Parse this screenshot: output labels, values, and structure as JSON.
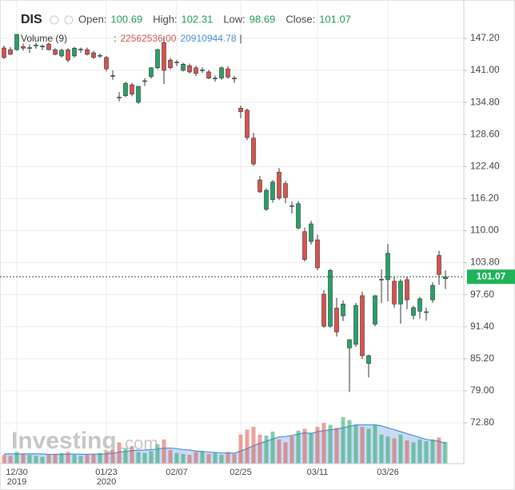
{
  "chart_data": {
    "type": "candlestick",
    "title": "DIS",
    "header": [
      {
        "label": "Open:",
        "value": 100.69
      },
      {
        "label": "High:",
        "value": 102.31
      },
      {
        "label": "Low:",
        "value": 98.69
      },
      {
        "label": "Close:",
        "value": 101.07
      }
    ],
    "categories": [
      null,
      null,
      "12/30",
      null,
      null,
      null,
      null,
      null,
      null,
      null,
      null,
      null,
      null,
      null,
      null,
      null,
      "01/23",
      null,
      null,
      null,
      null,
      null,
      null,
      null,
      null,
      null,
      null,
      "02/07",
      null,
      null,
      null,
      null,
      null,
      null,
      null,
      null,
      null,
      "02/25",
      null,
      null,
      null,
      null,
      null,
      null,
      null,
      null,
      null,
      null,
      null,
      "03/11",
      null,
      null,
      null,
      null,
      null,
      null,
      null,
      null,
      null,
      null,
      "03/26",
      null,
      null,
      null,
      null,
      null,
      null,
      null,
      null,
      null
    ],
    "x_sublabels": {
      "2": "2019",
      "16": "2020"
    },
    "open": [
      145.34,
      145.0,
      145.0,
      145.6,
      145.3,
      145.8,
      145.6,
      146.1,
      145.0,
      143.8,
      145.0,
      143.8,
      145.0,
      145.0,
      144.4,
      143.8,
      143.5,
      140.0,
      135.8,
      136.1,
      138.2,
      134.83,
      138.9,
      139.8,
      141.5,
      146.4,
      143.0,
      142.5,
      141.0,
      141.9,
      141.5,
      141.0,
      140.7,
      139.4,
      139.5,
      141.3,
      139.5,
      133.7,
      133.3,
      127.9,
      119.8,
      114.1,
      116.0,
      121.3,
      119.1,
      114.8,
      110.5,
      109.8,
      107.9,
      108.2,
      97.7,
      91.5,
      95.0,
      93.5,
      87.3,
      88.0,
      97.4,
      84.3,
      91.9,
      100.5,
      100.5,
      100.2,
      95.8,
      100.5,
      93.6,
      94.4,
      94.2,
      96.6,
      105.2,
      100.69
    ],
    "high": [
      145.8,
      145.5,
      148.0,
      146.2,
      146.0,
      146.3,
      146.0,
      146.4,
      145.3,
      145.2,
      145.3,
      145.6,
      145.4,
      145.4,
      144.8,
      144.3,
      143.8,
      141.0,
      136.8,
      138.8,
      138.6,
      137.9,
      139.5,
      141.6,
      145.2,
      147.6,
      143.4,
      143.0,
      142.5,
      142.3,
      141.9,
      141.6,
      141.1,
      140.0,
      141.8,
      141.8,
      139.9,
      134.2,
      133.6,
      128.9,
      120.6,
      118.2,
      119.8,
      122.1,
      119.6,
      115.6,
      115.7,
      110.6,
      111.9,
      109.2,
      98.5,
      102.6,
      97.0,
      96.5,
      88.9,
      96.0,
      98.2,
      86.0,
      97.5,
      102.5,
      107.4,
      101.0,
      100.6,
      101.0,
      95.5,
      97.2,
      95.1,
      100.0,
      106.1,
      102.31
    ],
    "low": [
      143.2,
      144.0,
      144.8,
      144.8,
      144.4,
      145.2,
      144.9,
      144.9,
      143.9,
      143.5,
      142.6,
      143.5,
      144.4,
      143.9,
      143.2,
      143.4,
      140.8,
      139.2,
      135.0,
      135.8,
      136.0,
      134.5,
      138.0,
      139.4,
      141.2,
      138.38,
      141.2,
      141.8,
      140.8,
      140.4,
      139.9,
      140.5,
      139.3,
      138.8,
      139.2,
      139.4,
      138.6,
      131.7,
      127.5,
      122.5,
      117.3,
      113.8,
      115.4,
      115.9,
      115.3,
      113.3,
      110.2,
      104.0,
      107.3,
      102.3,
      91.2,
      91.2,
      89.5,
      92.5,
      78.8,
      87.5,
      85.2,
      81.6,
      91.5,
      96.0,
      96.3,
      95.1,
      92.0,
      94.8,
      92.8,
      93.0,
      92.6,
      96.0,
      99.5,
      98.69
    ],
    "close": [
      143.49,
      144.1,
      147.97,
      145.3,
      145.4,
      145.9,
      145.7,
      145.0,
      144.1,
      144.9,
      143.0,
      145.3,
      145.1,
      144.1,
      143.5,
      143.9,
      141.3,
      139.9,
      135.7,
      138.5,
      136.4,
      137.92,
      139.0,
      141.5,
      145.0,
      141.0,
      141.5,
      142.6,
      142.2,
      140.7,
      140.4,
      141.1,
      139.5,
      139.5,
      141.5,
      139.7,
      139.4,
      133.0,
      128.0,
      122.9,
      117.5,
      117.8,
      119.4,
      116.3,
      116.4,
      114.7,
      115.2,
      104.4,
      111.3,
      102.8,
      91.5,
      102.3,
      90.4,
      95.8,
      88.9,
      95.5,
      85.8,
      85.8,
      97.4,
      100.6,
      105.6,
      95.8,
      100.2,
      96.6,
      95.1,
      96.8,
      94.3,
      99.4,
      101.5,
      101.07
    ],
    "up_color": "#26a269",
    "down_color": "#d9534f",
    "ylim": [
      64.91,
      154.62
    ],
    "yticks": [
      {
        "value": 147.2,
        "label": "147.20"
      },
      {
        "value": 141,
        "label": "141.00"
      },
      {
        "value": 134.8,
        "label": "134.80"
      },
      {
        "value": 128.6,
        "label": "128.60"
      },
      {
        "value": 122.4,
        "label": "122.40"
      },
      {
        "value": 116.2,
        "label": "116.20"
      },
      {
        "value": 110,
        "label": "110.00"
      },
      {
        "value": 103.8,
        "label": "103.80"
      },
      {
        "value": 97.6,
        "label": "97.60"
      },
      {
        "value": 91.4,
        "label": "91.40"
      },
      {
        "value": 85.2,
        "label": "85.20"
      },
      {
        "value": 79,
        "label": "79.00"
      },
      {
        "value": 72.8,
        "label": "72.80"
      }
    ],
    "grid": true,
    "last_price": {
      "value": 101.07,
      "color": "#1fb35a"
    },
    "volume": {
      "name": "Volume (9)",
      "separator": ":",
      "cursor": "|",
      "value_label": "22562536.00",
      "ma_label": "20910944.78",
      "ma_color": "#4a8fdc",
      "ylim": [
        0,
        66000000.0
      ],
      "values": [
        9000000.0,
        8000000.0,
        12000000.0,
        10000000.0,
        9000000.0,
        8000000.0,
        7000000.0,
        9000000.0,
        10000000.0,
        11000000.0,
        12000000.0,
        9000000.0,
        8000000.0,
        9000000.0,
        10000000.0,
        11000000.0,
        12000000.0,
        14000000.0,
        22000000.0,
        16000000.0,
        18000000.0,
        12000000.0,
        11000000.0,
        13000000.0,
        20000000.0,
        25000000.0,
        14000000.0,
        11000000.0,
        10000000.0,
        9000000.0,
        12000000.0,
        13000000.0,
        10000000.0,
        11000000.0,
        9000000.0,
        12000000.0,
        10000000.0,
        30000000.0,
        35000000.0,
        38000000.0,
        30000000.0,
        29000000.0,
        33000000.0,
        25000000.0,
        22000000.0,
        28000000.0,
        34000000.0,
        36000000.0,
        32000000.0,
        38000000.0,
        42000000.0,
        40000000.0,
        37000000.0,
        48000000.0,
        45000000.0,
        40000000.0,
        38000000.0,
        36000000.0,
        40000000.0,
        30000000.0,
        28000000.0,
        26000000.0,
        30000000.0,
        24000000.0,
        22000000.0,
        25000000.0,
        23000000.0,
        25000000.0,
        27000000.0,
        22562536
      ],
      "ma_values": [
        10000000.0,
        10000000.0,
        10000000.0,
        10000000.0,
        10000000.0,
        10000000.0,
        10000000.0,
        9500000.0,
        9500000.0,
        9500000.0,
        9800000.0,
        9800000.0,
        9700000.0,
        9600000.0,
        9700000.0,
        9800000.0,
        10000000.0,
        10500000.0,
        12000000.0,
        12500000.0,
        13500000.0,
        13800000.0,
        14000000.0,
        14500000.0,
        15000000.0,
        16000000.0,
        16000000.0,
        15500000.0,
        14500000.0,
        14000000.0,
        13000000.0,
        12500000.0,
        12000000.0,
        11500000.0,
        11000000.0,
        11000000.0,
        10800000.0,
        13000000.0,
        15500000.0,
        18500000.0,
        21000000.0,
        23000000.0,
        25500000.0,
        27500000.0,
        28000000.0,
        29000000.0,
        30500000.0,
        32000000.0,
        31000000.0,
        33000000.0,
        34000000.0,
        35000000.0,
        35500000.0,
        37000000.0,
        38500000.0,
        40000000.0,
        40000000.0,
        40000000.0,
        40000000.0,
        39000000.0,
        37000000.0,
        35000000.0,
        33000000.0,
        31000000.0,
        29000000.0,
        27000000.0,
        25000000.0,
        24000000.0,
        23000000.0,
        20910944.78
      ]
    },
    "watermark": [
      "Investing",
      ".com"
    ]
  }
}
